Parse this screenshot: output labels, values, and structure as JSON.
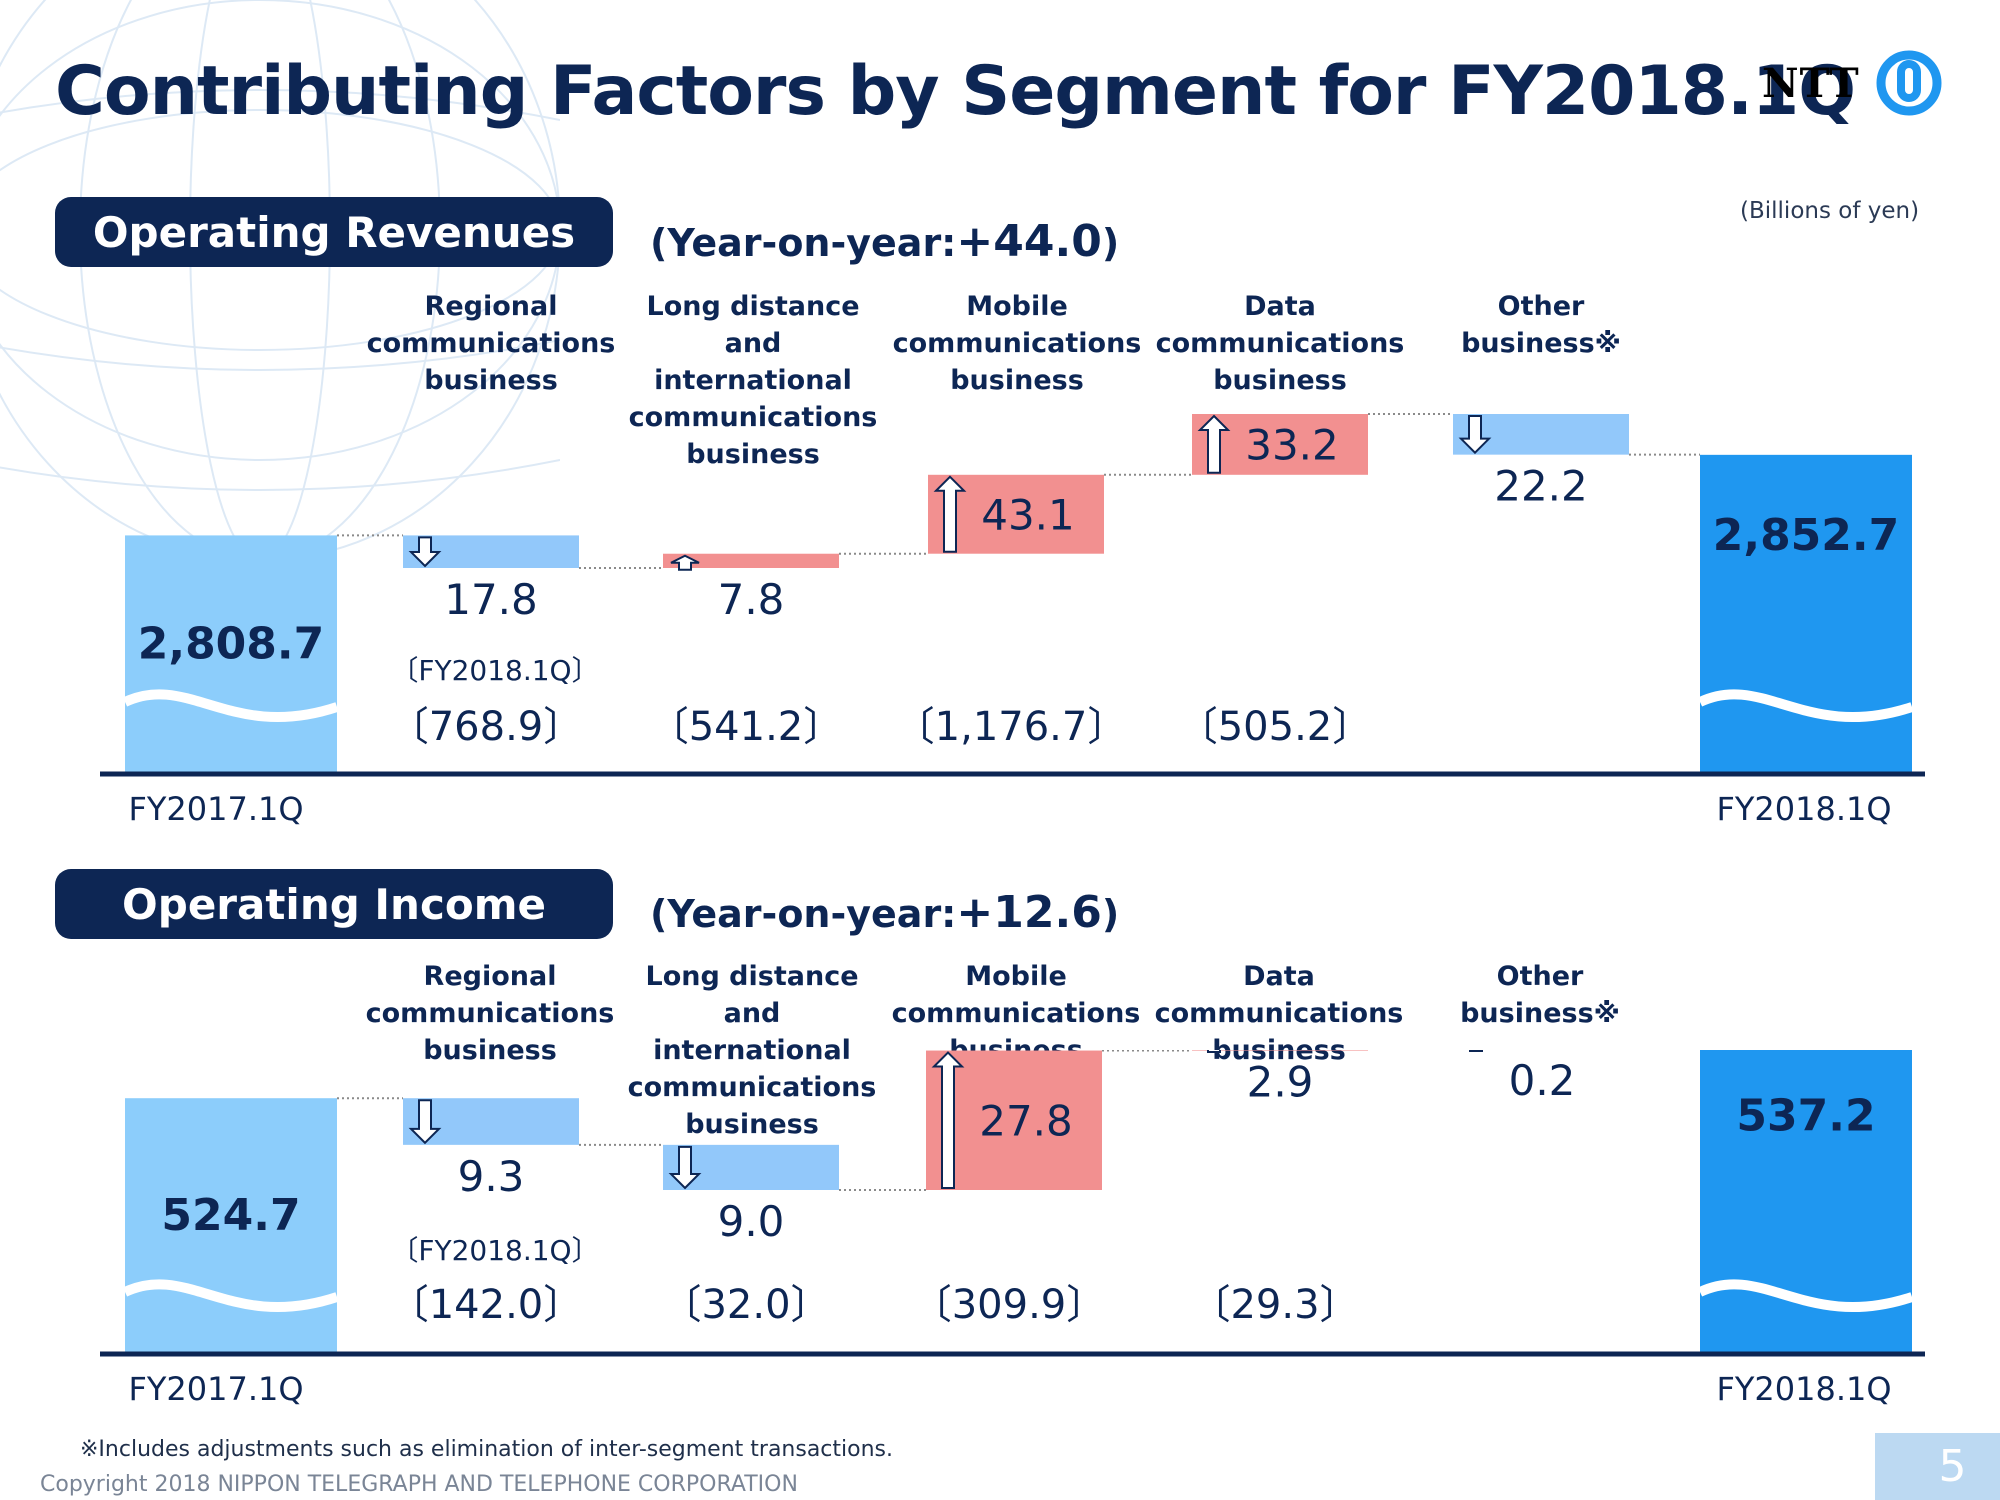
{
  "title": "Contributing Factors by Segment for FY2018.1Q",
  "logo_text": "NTT",
  "units": "(Billions of yen)",
  "footnote": "※Includes adjustments such as elimination of inter-segment transactions.",
  "copyright": "Copyright 2018 NIPPON TELEGRAPH AND TELEPHONE CORPORATION",
  "page_number": "5",
  "colors": {
    "navy": "#0d2654",
    "start_bar": "#8ccdfb",
    "end_bar": "#1f97f0",
    "increase": "#f29090",
    "decrease": "#92c8fa"
  },
  "segment_labels": [
    [
      "Regional",
      "communications",
      "business"
    ],
    [
      "Long distance and",
      "international",
      "communications",
      "business"
    ],
    [
      "Mobile",
      "communications",
      "business"
    ],
    [
      "Data",
      "communications",
      "business"
    ],
    [
      "Other",
      "business※"
    ]
  ],
  "chart_data": [
    {
      "type": "waterfall",
      "section_title": "Operating Revenues",
      "yoy_prefix": "(Year-on-year:",
      "yoy_value": "+44.0",
      "yoy_suffix": ")",
      "start": {
        "label": "FY2017.1Q",
        "value": 2808.7,
        "display": "2,808.7"
      },
      "end": {
        "label": "FY2018.1Q",
        "value": 2852.7,
        "display": "2,852.7"
      },
      "steps": [
        {
          "segment": "Regional communications business",
          "delta": -17.8,
          "display": "17.8",
          "fy2018_1q": "〔768.9〕"
        },
        {
          "segment": "Long distance and international communications business",
          "delta": 7.8,
          "display": "7.8",
          "fy2018_1q": "〔541.2〕"
        },
        {
          "segment": "Mobile communications business",
          "delta": 43.1,
          "display": "43.1",
          "fy2018_1q": "〔1,176.7〕"
        },
        {
          "segment": "Data communications business",
          "delta": 33.2,
          "display": "33.2",
          "fy2018_1q": "〔505.2〕"
        },
        {
          "segment": "Other business※",
          "delta": -22.2,
          "display": "22.2",
          "fy2018_1q": ""
        }
      ],
      "fy_caption": "〔FY2018.1Q〕"
    },
    {
      "type": "waterfall",
      "section_title": "Operating Income",
      "yoy_prefix": "(Year-on-year:",
      "yoy_value": "+12.6",
      "yoy_suffix": ")",
      "start": {
        "label": "FY2017.1Q",
        "value": 524.7,
        "display": "524.7"
      },
      "end": {
        "label": "FY2018.1Q",
        "value": 537.2,
        "display": "537.2"
      },
      "steps": [
        {
          "segment": "Regional communications business",
          "delta": -9.3,
          "display": "9.3",
          "fy2018_1q": "〔142.0〕"
        },
        {
          "segment": "Long distance and international communications business",
          "delta": -9.0,
          "display": "9.0",
          "fy2018_1q": "〔32.0〕"
        },
        {
          "segment": "Mobile communications business",
          "delta": 27.8,
          "display": "27.8",
          "fy2018_1q": "〔309.9〕"
        },
        {
          "segment": "Data communications business",
          "delta": 2.9,
          "display": "2.9",
          "fy2018_1q": "〔29.3〕"
        },
        {
          "segment": "Other business※",
          "delta": 0.2,
          "display": "0.2",
          "fy2018_1q": ""
        }
      ],
      "fy_caption": "〔FY2018.1Q〕"
    }
  ]
}
